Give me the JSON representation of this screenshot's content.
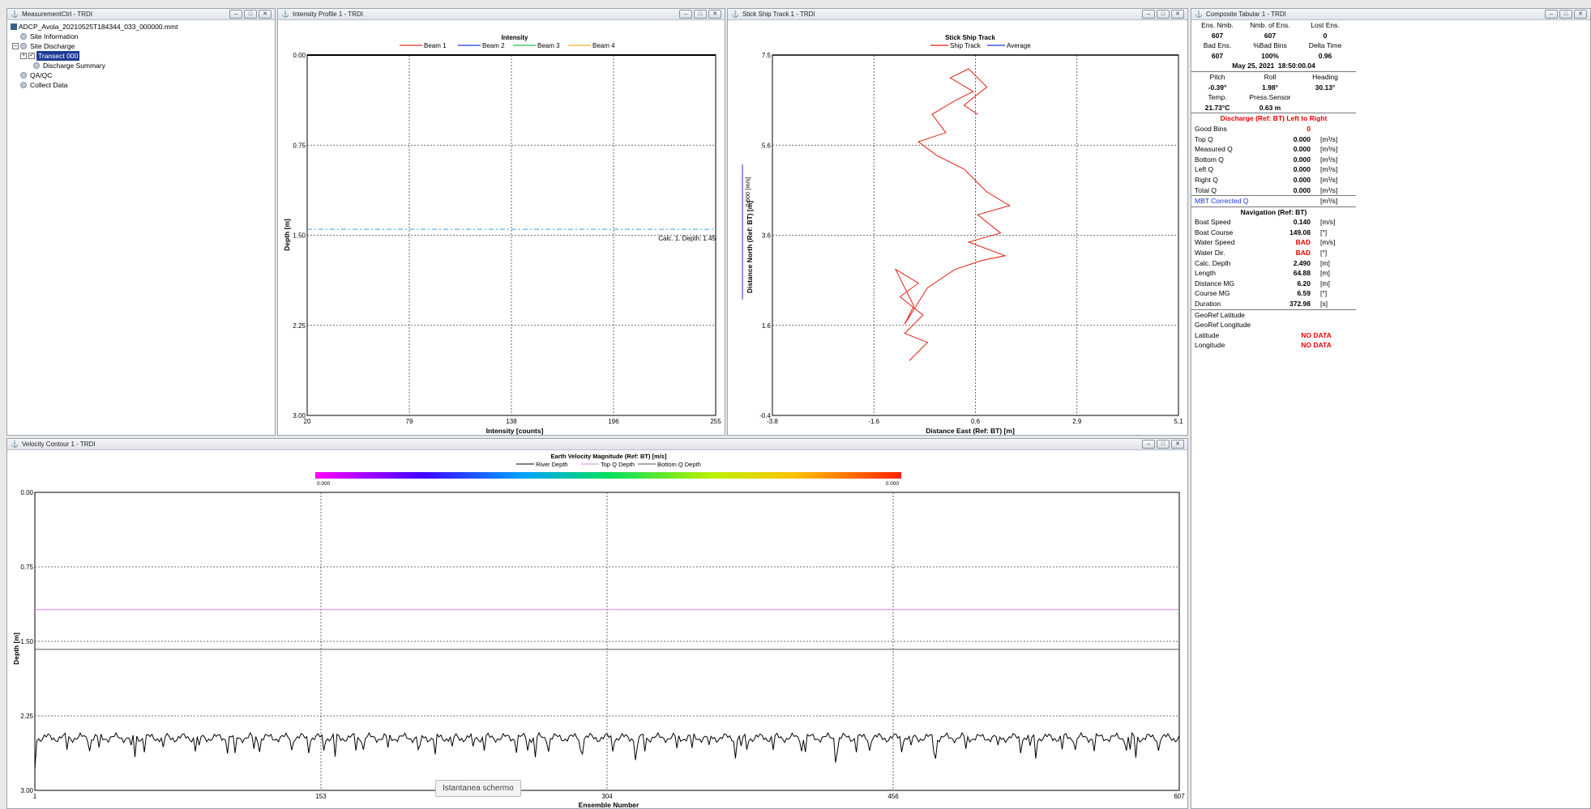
{
  "measurement_window": {
    "title": "MeasurementCtrl - TRDI",
    "tree": [
      {
        "label": "ADCP_Avola_20210525T184344_033_000000.mmt",
        "level": 0,
        "icon": "file-icon"
      },
      {
        "label": "Site Information",
        "level": 1,
        "icon": "node-icon"
      },
      {
        "label": "Site Discharge",
        "level": 1,
        "icon": "node-icon"
      },
      {
        "label": "Transect 000",
        "level": 2,
        "icon": "checkbox-icon",
        "selected": true
      },
      {
        "label": "Discharge Summary",
        "level": 2,
        "icon": "node-icon"
      },
      {
        "label": "QA/QC",
        "level": 1,
        "icon": "node-icon"
      },
      {
        "label": "Collect Data",
        "level": 1,
        "icon": "node-icon"
      }
    ]
  },
  "intensity_window": {
    "title": "Intensity Profile 1 - TRDI",
    "chart_data": {
      "type": "line",
      "title": "Intensity",
      "legend": [
        "Beam 1",
        "Beam 2",
        "Beam 3",
        "Beam 4"
      ],
      "legend_colors": [
        "#e03020",
        "#2030e0",
        "#20c040",
        "#f0b020"
      ],
      "xlabel": "Intensity [counts]",
      "ylabel": "Depth [m]",
      "x_ticks": [
        "20",
        "79",
        "138",
        "196",
        "255"
      ],
      "y_ticks": [
        "0.00",
        "0.75",
        "1.50",
        "2.25",
        "3.00"
      ],
      "xlim": [
        20,
        255
      ],
      "ylim": [
        0,
        3
      ],
      "annotation": "Calc. 1. Depth: 1.45",
      "annotation_depth": 1.45
    }
  },
  "ship_track_window": {
    "title": "Stick Ship Track 1 - TRDI",
    "chart_data": {
      "type": "line",
      "title": "Stick Ship Track",
      "legend": [
        "Ship Track",
        "Average"
      ],
      "legend_colors": [
        "#e02010",
        "#2030e0"
      ],
      "xlabel": "Distance East (Ref: BT) [m]",
      "ylabel": "Distance North (Ref: BT) [m]",
      "scale_label": "0.500 [m/s]",
      "x_ticks": [
        "-3.8",
        "-1.6",
        "0.6",
        "2.9",
        "5.1"
      ],
      "y_ticks": [
        "7.5",
        "5.6",
        "3.6",
        "1.6",
        "-0.4"
      ],
      "xlim": [
        -3.8,
        5.1
      ],
      "ylim": [
        -0.4,
        7.5
      ],
      "track": [
        [
          -0.8,
          0.8
        ],
        [
          -0.4,
          1.2
        ],
        [
          -0.9,
          1.4
        ],
        [
          -0.5,
          1.8
        ],
        [
          -1.0,
          2.2
        ],
        [
          -0.6,
          2.5
        ],
        [
          -1.1,
          2.8
        ],
        [
          -0.7,
          2.0
        ],
        [
          -0.9,
          1.6
        ],
        [
          -0.4,
          2.4
        ],
        [
          0.2,
          2.8
        ],
        [
          0.8,
          3.0
        ],
        [
          1.3,
          3.1
        ],
        [
          0.5,
          3.4
        ],
        [
          1.2,
          3.6
        ],
        [
          0.7,
          4.0
        ],
        [
          1.4,
          4.2
        ],
        [
          0.9,
          4.5
        ],
        [
          0.4,
          5.0
        ],
        [
          -0.2,
          5.3
        ],
        [
          -0.6,
          5.6
        ],
        [
          0.0,
          5.8
        ],
        [
          -0.3,
          6.2
        ],
        [
          0.2,
          6.5
        ],
        [
          0.6,
          6.7
        ],
        [
          0.1,
          7.0
        ],
        [
          0.5,
          7.2
        ],
        [
          0.9,
          6.8
        ],
        [
          0.4,
          6.4
        ],
        [
          0.7,
          6.2
        ]
      ]
    }
  },
  "tabular_window": {
    "title": "Composite Tabular 1 - TRDI",
    "header_rows": [
      {
        "cells": [
          "Ens. Nmb.",
          "Nmb. of Ens.",
          "Lost Ens."
        ],
        "bold": false
      },
      {
        "cells": [
          "607",
          "607",
          "0"
        ],
        "bold": true
      },
      {
        "cells": [
          "Bad Ens.",
          "%Bad Bins",
          "Delta Time"
        ],
        "bold": false
      },
      {
        "cells": [
          "607",
          "100%",
          "0.96"
        ],
        "bold": true
      }
    ],
    "datetime": "May 25, 2021  18:50:00.04",
    "sensor_rows": [
      {
        "cells": [
          "Pitch",
          "Roll",
          "Heading"
        ],
        "bold": false
      },
      {
        "cells": [
          "-0.39°",
          "1.98°",
          "30.13°"
        ],
        "bold": true
      },
      {
        "cells": [
          "Temp.",
          "Press.Sensor",
          ""
        ],
        "bold": false
      },
      {
        "cells": [
          "21.73°C",
          "0.63 m",
          ""
        ],
        "bold": true
      }
    ],
    "discharge_title": "Discharge (Ref: BT) Left to Right",
    "discharge_rows": [
      {
        "label": "Good Bins",
        "value": "0",
        "unit": "",
        "red": true
      },
      {
        "label": "Top Q",
        "value": "0.000",
        "unit": "[m³/s]"
      },
      {
        "label": "Measured Q",
        "value": "0.000",
        "unit": "[m³/s]"
      },
      {
        "label": "Bottom Q",
        "value": "0.000",
        "unit": "[m³/s]"
      },
      {
        "label": "Left Q",
        "value": "0.000",
        "unit": "[m³/s]"
      },
      {
        "label": "Right Q",
        "value": "0.000",
        "unit": "[m³/s]"
      },
      {
        "label": "Total Q",
        "value": "0.000",
        "unit": "[m³/s]"
      }
    ],
    "mbt_label": "MBT Corrected Q",
    "mbt_unit": "[m³/s]",
    "nav_title": "Navigation (Ref: BT)",
    "nav_rows": [
      {
        "label": "Boat Speed",
        "value": "0.140",
        "unit": "[m/s]"
      },
      {
        "label": "Boat Course",
        "value": "149.08",
        "unit": "[°]"
      },
      {
        "label": "Water Speed",
        "value": "BAD",
        "unit": "[m/s]",
        "red": true
      },
      {
        "label": "Water Dir.",
        "value": "BAD",
        "unit": "[°]",
        "red": true
      },
      {
        "label": "Calc. Depth",
        "value": "2.490",
        "unit": "[m]"
      },
      {
        "label": "Length",
        "value": "64.88",
        "unit": "[m]"
      },
      {
        "label": "Distance MG",
        "value": "6.20",
        "unit": "[m]"
      },
      {
        "label": "Course MG",
        "value": "6.59",
        "unit": "[°]"
      },
      {
        "label": "Duration",
        "value": "372.98",
        "unit": "[s]"
      }
    ],
    "geo_rows": [
      {
        "label": "GeoRef Latitude",
        "value": ""
      },
      {
        "label": "GeoRef Longitude",
        "value": ""
      },
      {
        "label": "Latitude",
        "value": "NO DATA"
      },
      {
        "label": "Longitude",
        "value": "NO DATA"
      }
    ]
  },
  "velocity_window": {
    "title": "Velocity Contour 1 - TRDI",
    "chart_data": {
      "type": "line",
      "title": "Earth Velocity Magnitude (Ref: BT) [m/s]",
      "legend": [
        "River Depth",
        "Top Q Depth",
        "Bottom Q Depth"
      ],
      "colorbar_min": "0.000",
      "colorbar_max": "0.000",
      "xlabel": "Ensemble Number",
      "ylabel": "Depth [m]",
      "x_ticks": [
        "1",
        "153",
        "304",
        "456",
        "607"
      ],
      "y_ticks": [
        "0.00",
        "0.75",
        "1.50",
        "2.25",
        "3.00"
      ],
      "xlim": [
        1,
        607
      ],
      "ylim": [
        0,
        3
      ],
      "top_q_depth": 1.18,
      "bottom_q_depth": 1.58,
      "river_depth_mean": 2.47
    }
  },
  "tooltip": "Istantanea schermo"
}
